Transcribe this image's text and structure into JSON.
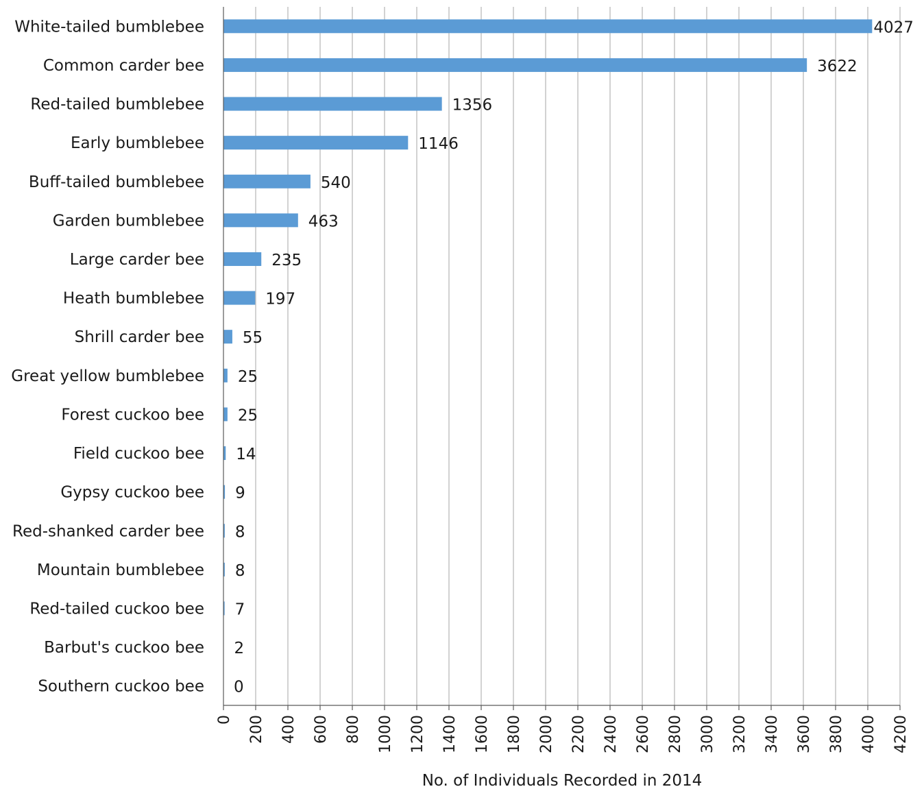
{
  "chart_data": {
    "type": "bar",
    "orientation": "horizontal",
    "categories": [
      "White-tailed bumblebee",
      "Common carder bee",
      "Red-tailed bumblebee",
      "Early bumblebee",
      "Buff-tailed bumblebee",
      "Garden bumblebee",
      "Large carder bee",
      "Heath bumblebee",
      "Shrill carder bee",
      "Great yellow bumblebee",
      "Forest cuckoo bee",
      "Field cuckoo bee",
      "Gypsy cuckoo bee",
      "Red-shanked carder bee",
      "Mountain bumblebee",
      "Red-tailed cuckoo bee",
      "Barbut's cuckoo bee",
      "Southern cuckoo bee"
    ],
    "values": [
      4027,
      3622,
      1356,
      1146,
      540,
      463,
      235,
      197,
      55,
      25,
      25,
      14,
      9,
      8,
      8,
      7,
      2,
      0
    ],
    "xlabel": "No. of Individuals Recorded in 2014",
    "ylabel": "",
    "xlim": [
      0,
      4200
    ],
    "xticks": [
      0,
      200,
      400,
      600,
      800,
      1000,
      1200,
      1400,
      1600,
      1800,
      2000,
      2200,
      2400,
      2600,
      2800,
      3000,
      3200,
      3400,
      3600,
      3800,
      4000,
      4200
    ],
    "grid": true,
    "data_labels": true,
    "bar_color": "#5b9bd5"
  }
}
